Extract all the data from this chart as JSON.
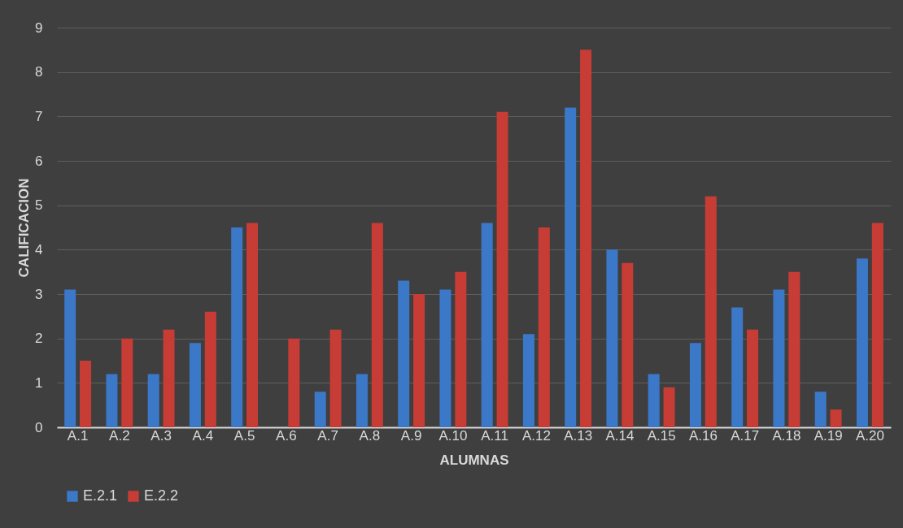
{
  "chart_data": {
    "type": "bar",
    "xlabel": "ALUMNAS",
    "ylabel": "CALIFICACION",
    "categories": [
      "A.1",
      "A.2",
      "A.3",
      "A.4",
      "A.5",
      "A.6",
      "A.7",
      "A.8",
      "A.9",
      "A.10",
      "A.11",
      "A.12",
      "A.13",
      "A.14",
      "A.15",
      "A.16",
      "A.17",
      "A.18",
      "A.19",
      "A.20"
    ],
    "series": [
      {
        "name": "E.2.1",
        "color": "#3c78c8",
        "values": [
          3.1,
          1.2,
          1.2,
          1.9,
          4.5,
          null,
          0.8,
          1.2,
          3.3,
          3.1,
          4.6,
          2.1,
          7.2,
          4.0,
          1.2,
          1.9,
          2.7,
          3.1,
          0.8,
          3.8
        ]
      },
      {
        "name": "E.2.2",
        "color": "#c83c36",
        "values": [
          1.5,
          2.0,
          2.2,
          2.6,
          4.6,
          2.0,
          2.2,
          4.6,
          3.0,
          3.5,
          7.1,
          4.5,
          8.5,
          3.7,
          0.9,
          5.2,
          2.2,
          3.5,
          0.4,
          4.6
        ]
      }
    ],
    "ylim": [
      0,
      9
    ],
    "yticks": [
      0,
      1,
      2,
      3,
      4,
      5,
      6,
      7,
      8,
      9
    ],
    "grid": "y",
    "legend": "bottom"
  }
}
